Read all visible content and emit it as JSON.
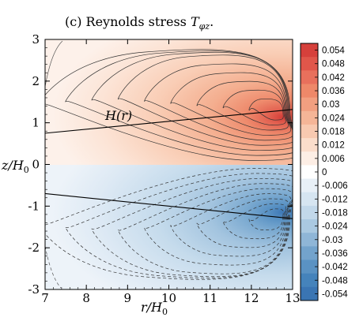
{
  "chart_data": {
    "type": "contour",
    "title": "(c) Reynolds stress T_φz.",
    "title_main": "(c) Reynolds stress ",
    "title_sym": "T",
    "title_sub": "φz",
    "title_end": ".",
    "xlabel_main": "r/H",
    "xlabel_sub": "0",
    "ylabel_main": "z/H",
    "ylabel_sub": "0",
    "xlim": [
      7,
      13
    ],
    "ylim": [
      -3,
      3
    ],
    "xticks": [
      "7",
      "8",
      "9",
      "10",
      "11",
      "12",
      "13"
    ],
    "yticks": [
      "-3",
      "-2",
      "-1",
      "0",
      "1",
      "2",
      "3"
    ],
    "annotation": "H(r)",
    "colorbar": {
      "levels": [
        "0.054",
        "0.048",
        "0.042",
        "0.036",
        "0.03",
        "0.024",
        "0.018",
        "0.012",
        "0.006",
        "0",
        "-0.006",
        "-0.012",
        "-0.018",
        "-0.024",
        "-0.03",
        "-0.036",
        "-0.042",
        "-0.048",
        "-0.054"
      ],
      "colors": [
        "#d6403b",
        "#e0564a",
        "#e8705c",
        "#ee8869",
        "#f29f80",
        "#f5b597",
        "#f8c9b0",
        "#fbddcb",
        "#fdeee5",
        "#ffffff",
        "#e8f0f7",
        "#d6e5f1",
        "#c2d8ea",
        "#aac9e1",
        "#8fb6d7",
        "#73a3cc",
        "#5a92c3",
        "#4583bb",
        "#3a75b3"
      ]
    },
    "scale_height_lines": [
      {
        "name": "upper",
        "x": [
          7,
          13
        ],
        "y": [
          0.75,
          1.32
        ]
      },
      {
        "name": "lower",
        "x": [
          7,
          13
        ],
        "y": [
          -0.7,
          -1.3
        ]
      }
    ],
    "field_peaks": [
      {
        "sign": "positive",
        "x": 12.65,
        "y": 1.25,
        "value": 0.054
      },
      {
        "sign": "negative",
        "x": 12.65,
        "y": -1.25,
        "value": -0.054
      }
    ]
  }
}
